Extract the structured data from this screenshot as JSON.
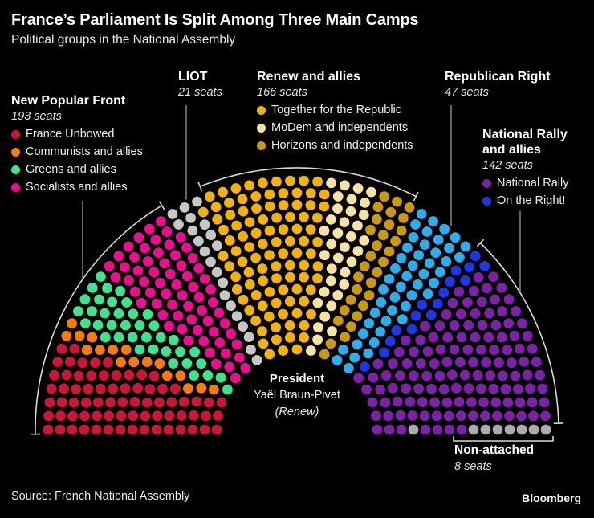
{
  "header": {
    "title": "France’s Parliament Is Split Among Three Main Camps",
    "subtitle": "Political groups in the National Assembly"
  },
  "panels": {
    "npf": {
      "title": "New Popular Front",
      "seats": "193 seats",
      "legend": [
        {
          "label": "France Unbowed",
          "color": "#ce1538"
        },
        {
          "label": "Communists and allies",
          "color": "#f97b06"
        },
        {
          "label": "Greens and allies",
          "color": "#39e68e"
        },
        {
          "label": "Socialists and allies",
          "color": "#ef0b92"
        }
      ]
    },
    "liot": {
      "title": "LIOT",
      "seats": "21 seats"
    },
    "renew": {
      "title": "Renew and allies",
      "seats": "166 seats",
      "legend": [
        {
          "label": "Together for the Republic",
          "color": "#f3b306"
        },
        {
          "label": "MoDem and independents",
          "color": "#f8e2a0"
        },
        {
          "label": "Horizons and independents",
          "color": "#ca9a0a"
        }
      ]
    },
    "rr": {
      "title": "Republican Right",
      "seats": "47 seats"
    },
    "nr": {
      "title_line1": "National Rally",
      "title_line2": "and allies",
      "seats": "142 seats",
      "legend": [
        {
          "label": "National Rally",
          "color": "#7d22a8"
        },
        {
          "label": "On the Right!",
          "color": "#1c38e6"
        }
      ]
    },
    "na": {
      "title": "Non-attached",
      "seats": "8 seats"
    },
    "president": {
      "role": "President",
      "name": "Yaël Braun-Pivet",
      "party": "(Renew)"
    }
  },
  "footer": {
    "source": "Source: French National Assembly",
    "brand": "Bloomberg"
  },
  "chart_data": {
    "type": "parliament-hemicycle",
    "title": "France’s Parliament Is Split Among Three Main Camps",
    "subtitle": "Political groups in the National Assembly",
    "total_seats": 577,
    "rows": 15,
    "seat_order_note": "groups and parties listed in seating order, left to right",
    "groups": [
      {
        "name": "New Popular Front",
        "seats": 193,
        "bracket": "arc",
        "parties": [
          {
            "name": "France Unbowed",
            "seats": 72,
            "color": "#ce1538"
          },
          {
            "name": "Communists and allies",
            "seats": 17,
            "color": "#f97b06"
          },
          {
            "name": "Greens and allies",
            "seats": 38,
            "color": "#39e68e"
          },
          {
            "name": "Socialists and allies",
            "seats": 66,
            "color": "#ef0b92"
          }
        ]
      },
      {
        "name": "LIOT",
        "seats": 21,
        "bracket": "leader",
        "parties": [
          {
            "name": "LIOT",
            "seats": 21,
            "color": "#c6c6c6"
          }
        ]
      },
      {
        "name": "Renew and allies",
        "seats": 166,
        "bracket": "arc",
        "parties": [
          {
            "name": "Together for the Republic",
            "seats": 99,
            "color": "#f3b306"
          },
          {
            "name": "MoDem and independents",
            "seats": 36,
            "color": "#f8e2a0"
          },
          {
            "name": "Horizons and independents",
            "seats": 31,
            "color": "#ca9a0a"
          }
        ]
      },
      {
        "name": "Republican Right",
        "seats": 47,
        "bracket": "leader",
        "parties": [
          {
            "name": "Republican Right",
            "seats": 47,
            "color": "#29aef0"
          }
        ]
      },
      {
        "name": "National Rally and allies",
        "seats": 142,
        "bracket": "arc",
        "parties": [
          {
            "name": "On the Right!",
            "seats": 16,
            "color": "#1c38e6"
          },
          {
            "name": "National Rally",
            "seats": 126,
            "color": "#7d22a8"
          }
        ]
      },
      {
        "name": "Non-attached",
        "seats": 8,
        "bracket": "square",
        "parties": [
          {
            "name": "Non-attached",
            "seats": 8,
            "color": "#ababab"
          }
        ]
      }
    ],
    "center_label": {
      "role": "President",
      "name": "Yaël Braun-Pivet",
      "party": "(Renew)"
    }
  }
}
